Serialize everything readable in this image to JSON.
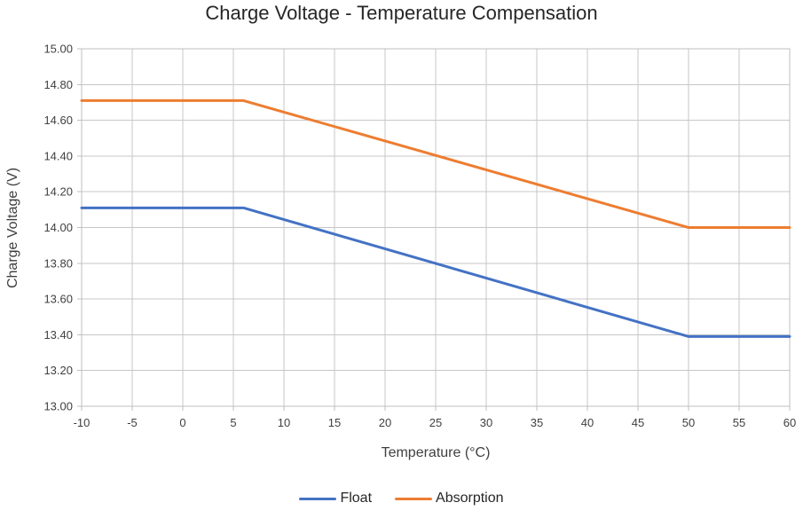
{
  "chart_data": {
    "type": "line",
    "title": "Charge Voltage - Temperature Compensation",
    "xlabel": "Temperature (°C)",
    "ylabel": "Charge Voltage (V)",
    "xlim": [
      -10,
      60
    ],
    "ylim": [
      13.0,
      15.0
    ],
    "x_ticks": [
      -10,
      -5,
      0,
      5,
      10,
      15,
      20,
      25,
      30,
      35,
      40,
      45,
      50,
      55,
      60
    ],
    "x_tick_labels": [
      "-10",
      "-5",
      "0",
      "5",
      "10",
      "15",
      "20",
      "25",
      "30",
      "35",
      "40",
      "45",
      "50",
      "55",
      "60"
    ],
    "y_ticks": [
      13.0,
      13.2,
      13.4,
      13.6,
      13.8,
      14.0,
      14.2,
      14.4,
      14.6,
      14.8,
      15.0
    ],
    "y_tick_labels": [
      "13.00",
      "13.20",
      "13.40",
      "13.60",
      "13.80",
      "14.00",
      "14.20",
      "14.40",
      "14.60",
      "14.80",
      "15.00"
    ],
    "grid": true,
    "legend_position": "bottom",
    "series": [
      {
        "name": "Float",
        "color": "#4472C4",
        "x": [
          -10,
          6,
          50,
          60
        ],
        "y": [
          14.11,
          14.11,
          13.39,
          13.39
        ]
      },
      {
        "name": "Absorption",
        "color": "#ED7D31",
        "x": [
          -10,
          6,
          50,
          60
        ],
        "y": [
          14.71,
          14.71,
          14.0,
          14.0
        ]
      }
    ]
  },
  "style": {
    "grid_color": "#C7C7C7",
    "axis_color": "#BFBFBF",
    "tick_label_color": "#404040",
    "title_color": "#262626",
    "line_width": 3
  }
}
